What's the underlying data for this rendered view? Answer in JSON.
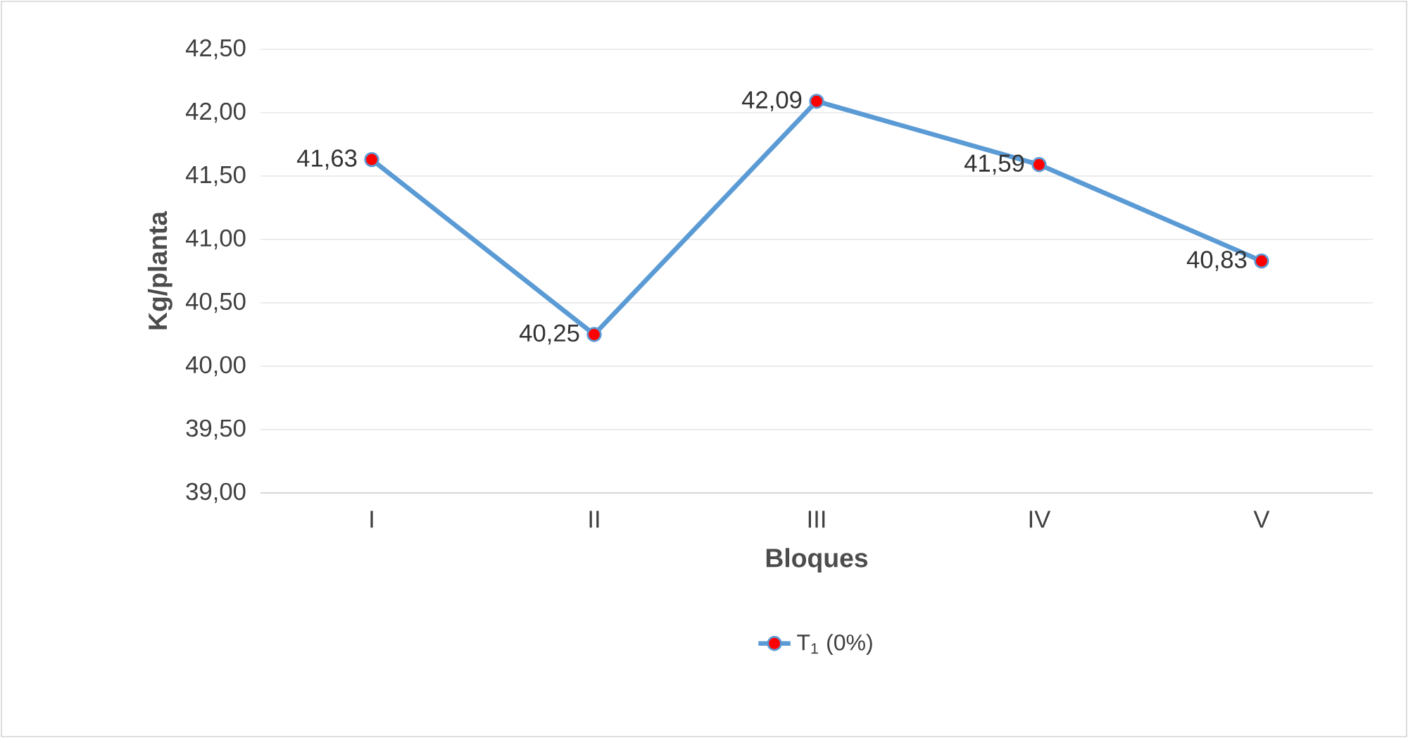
{
  "chart_data": {
    "type": "line",
    "xlabel": "Bloques",
    "ylabel": "Kg/planta",
    "categories": [
      "I",
      "II",
      "III",
      "IV",
      "V"
    ],
    "series": [
      {
        "name": "T$_{1}$ (0%)",
        "color": "#5b9bd5",
        "values": [
          41.63,
          40.25,
          42.09,
          41.59,
          40.83
        ],
        "value_labels": [
          "41,63",
          "40,25",
          "42,09",
          "41,59",
          "40,83"
        ]
      }
    ],
    "ylim": [
      39,
      42.5
    ],
    "yticks": [
      {
        "value": 39,
        "label": "39,00"
      },
      {
        "value": 39.5,
        "label": "39,50"
      },
      {
        "value": 40,
        "label": "40,00"
      },
      {
        "value": 40.5,
        "label": "40,50"
      },
      {
        "value": 41,
        "label": "41,00"
      },
      {
        "value": 41.5,
        "label": "41,50"
      },
      {
        "value": 42,
        "label": "42,00"
      },
      {
        "value": 42.5,
        "label": "42,50"
      }
    ],
    "grid": "y",
    "legend": "bottom",
    "marker": "circle"
  }
}
